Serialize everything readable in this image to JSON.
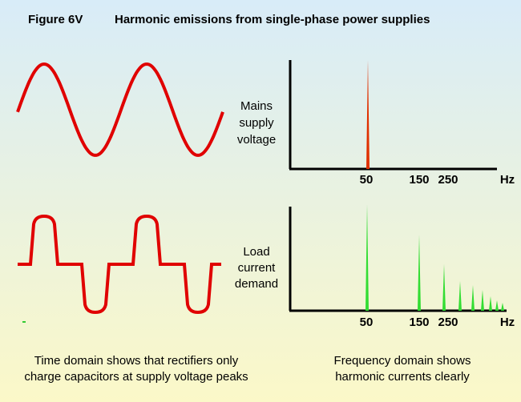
{
  "title": {
    "figure": "Figure 6V",
    "text": "Harmonic emissions from single-phase power supplies"
  },
  "voltage": {
    "label": [
      "Mains",
      "supply",
      "voltage"
    ],
    "axis_labels": [
      "50",
      "150",
      "250",
      "Hz"
    ]
  },
  "current": {
    "label": [
      "Load",
      "current",
      "demand"
    ],
    "axis_labels": [
      "50",
      "150",
      "250",
      "Hz"
    ]
  },
  "captions": {
    "time_domain": [
      "Time domain shows that rectifiers only",
      "charge capacitors at supply voltage peaks"
    ],
    "frequency_domain": [
      "Frequency domain shows",
      "harmonic currents clearly"
    ]
  }
}
